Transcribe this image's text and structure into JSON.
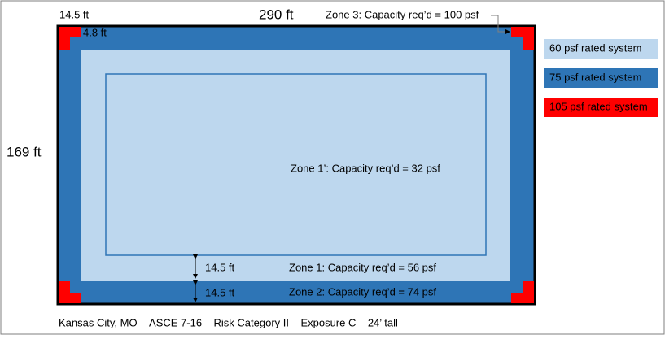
{
  "dimensions": {
    "top_left_width": "14.5 ft",
    "roof_width": "290 ft",
    "roof_depth": "169 ft",
    "corner_inner": "4.8 ft",
    "zone1_width": "14.5 ft",
    "zone2_width": "14.5 ft"
  },
  "zones": {
    "zone3": "Zone 3: Capacity req’d = 100 psf",
    "zone1_prime": "Zone 1’: Capacity req’d = 32 psf",
    "zone1": "Zone 1: Capacity req’d = 56 psf",
    "zone2": "Zone 2: Capacity req’d = 74 psf"
  },
  "legend": [
    "60 psf rated system",
    "75 psf rated system",
    "105 psf rated system"
  ],
  "footer": "Kansas City, MO__ASCE 7-16__Risk Category II__Exposure C__24’ tall"
}
